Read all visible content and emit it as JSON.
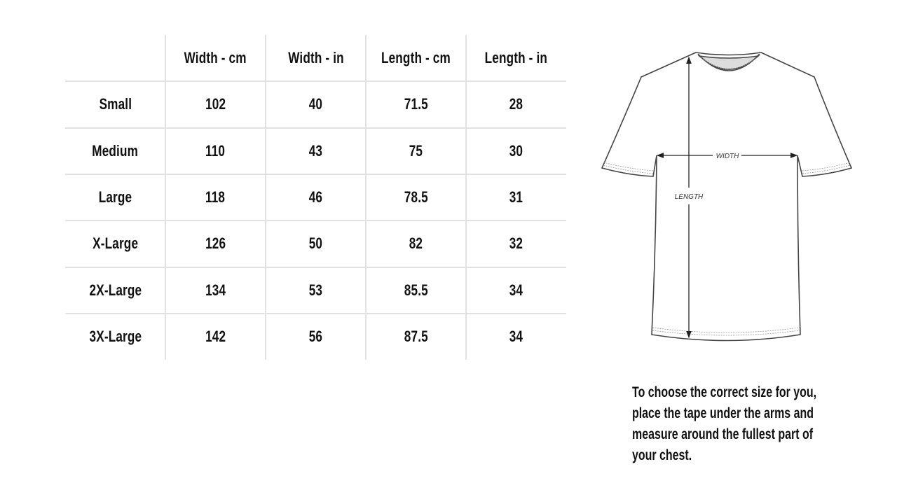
{
  "table": {
    "headers": [
      "",
      "Width - cm",
      "Width - in",
      "Length - cm",
      "Length - in"
    ],
    "rows": [
      [
        "Small",
        "102",
        "40",
        "71.5",
        "28"
      ],
      [
        "Medium",
        "110",
        "43",
        "75",
        "30"
      ],
      [
        "Large",
        "118",
        "46",
        "78.5",
        "31"
      ],
      [
        "X-Large",
        "126",
        "50",
        "82",
        "32"
      ],
      [
        "2X-Large",
        "134",
        "53",
        "85.5",
        "34"
      ],
      [
        "3X-Large",
        "142",
        "56",
        "87.5",
        "34"
      ]
    ]
  },
  "diagram": {
    "width_label": "WIDTH",
    "length_label": "LENGTH"
  },
  "caption": {
    "lines": [
      "To choose the correct size for you,",
      "place the tape under the arms and",
      "measure around the fullest part of",
      "your chest."
    ]
  }
}
